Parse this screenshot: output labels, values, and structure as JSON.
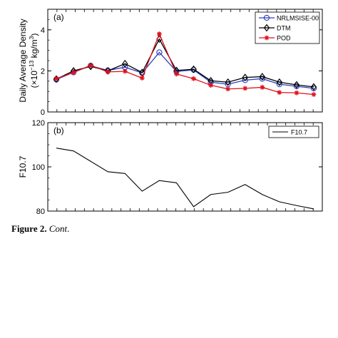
{
  "figure": {
    "caption_bold": "Figure 2.",
    "caption_italic": "Cont",
    "caption_end": "."
  },
  "chart_data": [
    {
      "type": "line",
      "panel_label": "(a)",
      "ylabel_line1": "Daily Average Density",
      "ylabel_line2": "(×10",
      "ylabel_exp": "−13",
      "ylabel_unit": " kg/m",
      "ylabel_unit_exp": "3",
      "ylabel_close": ")",
      "ylim": [
        0,
        5
      ],
      "yticks": [
        0,
        2,
        4
      ],
      "x_points": [
        1,
        2,
        3,
        4,
        5,
        6,
        7,
        8,
        9,
        10,
        11,
        12,
        13,
        14,
        15,
        16
      ],
      "xlim": [
        0.5,
        16.5
      ],
      "minor_xticks": 30,
      "legend_position": "top-right",
      "series": [
        {
          "name": "NRLMSISE-00",
          "color": "#2b3fbf",
          "marker": "circle",
          "values": [
            1.58,
            1.93,
            2.25,
            2.02,
            2.18,
            1.9,
            2.9,
            1.97,
            2.05,
            1.45,
            1.35,
            1.55,
            1.62,
            1.35,
            1.25,
            1.15
          ]
        },
        {
          "name": "DTM",
          "color": "#000000",
          "marker": "diamond",
          "values": [
            1.6,
            2.0,
            2.22,
            2.0,
            2.35,
            1.92,
            3.55,
            2.02,
            2.08,
            1.52,
            1.45,
            1.68,
            1.72,
            1.45,
            1.32,
            1.22
          ]
        },
        {
          "name": "POD",
          "color": "#e0101a",
          "marker": "asterisk",
          "values": [
            1.62,
            1.92,
            2.27,
            1.95,
            1.98,
            1.65,
            3.8,
            1.85,
            1.62,
            1.3,
            1.12,
            1.15,
            1.2,
            0.95,
            0.93,
            0.85
          ]
        }
      ]
    },
    {
      "type": "line",
      "panel_label": "(b)",
      "ylabel": "F10.7",
      "ylim": [
        80,
        120
      ],
      "yticks": [
        80,
        100,
        120
      ],
      "x_points": [
        1,
        2,
        3,
        4,
        5,
        6,
        7,
        8,
        9,
        10,
        11,
        12,
        13,
        14,
        15,
        16
      ],
      "xlim": [
        0.5,
        16.5
      ],
      "minor_xticks": 30,
      "legend_position": "top-right",
      "series": [
        {
          "name": "F10.7",
          "color": "#000000",
          "values": [
            108.5,
            107.2,
            102.5,
            97.8,
            97.0,
            89.0,
            93.8,
            92.8,
            82.0,
            87.5,
            88.5,
            92.0,
            87.5,
            84.2,
            82.5,
            81.0
          ]
        }
      ]
    }
  ]
}
